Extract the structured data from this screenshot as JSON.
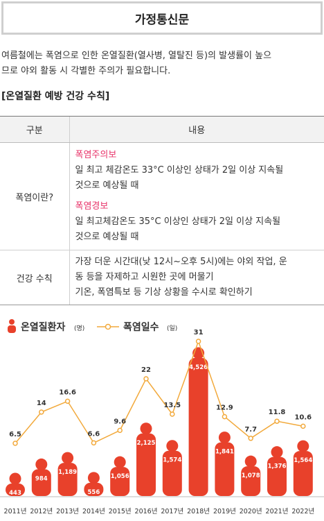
{
  "header": {
    "title": "가정통신문"
  },
  "intro": {
    "line1": "여름철에는 폭염으로 인한 온열질환(열사병, 열탈진 등)의 발생률이 높으",
    "line2": "므로 야외 활동 시 각별한 주의가 필요합니다."
  },
  "section_title": "[온열질환 예방 건강 수칙]",
  "table": {
    "headers": [
      "구분",
      "내용"
    ],
    "rows": [
      {
        "label": "폭염이란?",
        "items": [
          {
            "title": "폭염주의보",
            "lines": [
              "일 최고 체감온도 33°C 이상인 상태가 2일 이상 지속될",
              "것으로 예상될 때"
            ]
          },
          {
            "title": "폭염경보",
            "lines": [
              "일 최고체감온도 35°C 이상인 상태가 2일 이상 지속될",
              "것으로 예상될 때"
            ]
          }
        ]
      },
      {
        "label": "건강 수칙",
        "lines": [
          "가장 더운 시간대(낮 12시~오후 5시)에는 야외 작업, 운",
          "동 등을 자제하고 시원한 곳에 머물기",
          "기온, 폭염특보 등 기상 상황을 수시로 확인하기"
        ]
      }
    ]
  },
  "chart_data": {
    "type": "bar",
    "categories": [
      "2011년",
      "2012년",
      "2013년",
      "2014년",
      "2015년",
      "2016년",
      "2017년",
      "2018년",
      "2019년",
      "2020년",
      "2021년",
      "2022년"
    ],
    "series": [
      {
        "name": "온열질환자",
        "unit": "(명)",
        "type": "bar",
        "color": "#e8412b",
        "values": [
          443,
          984,
          1189,
          556,
          1056,
          2125,
          1574,
          4526,
          1841,
          1078,
          1376,
          1564
        ],
        "labels": [
          "443",
          "984",
          "1,189",
          "556",
          "1,056",
          "2,125",
          "1,574",
          "4,526",
          "1,841",
          "1,078",
          "1,376",
          "1,564"
        ]
      },
      {
        "name": "폭염일수",
        "unit": "(일)",
        "type": "line",
        "color": "#f2a93b",
        "values": [
          6.5,
          14,
          16.6,
          6.6,
          9.6,
          22,
          13.5,
          31,
          12.9,
          7.7,
          11.8,
          10.6
        ],
        "labels": [
          "6.5",
          "14",
          "16.6",
          "6.6",
          "9.6",
          "22",
          "13.5",
          "31",
          "12.9",
          "7.7",
          "11.8",
          "10.6"
        ]
      }
    ],
    "legend_position": "top-left",
    "grid": false
  }
}
